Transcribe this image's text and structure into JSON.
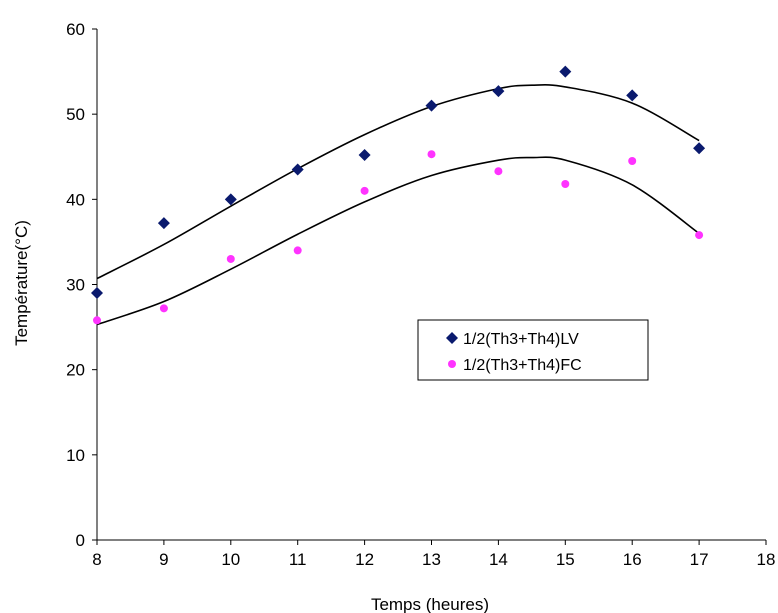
{
  "chart_data": {
    "type": "scatter",
    "title": "",
    "xlabel": "Temps (heures)",
    "ylabel": "Température(°C)",
    "xlim": [
      8,
      18
    ],
    "ylim": [
      0,
      60
    ],
    "xticks": [
      "8",
      "9",
      "10",
      "11",
      "12",
      "13",
      "14",
      "15",
      "16",
      "17",
      "18"
    ],
    "yticks": [
      "0",
      "10",
      "20",
      "30",
      "40",
      "50",
      "60"
    ],
    "grid": false,
    "legend_position": "center-right",
    "series": [
      {
        "name": "1/2(Th3+Th4)LV",
        "marker": "diamond",
        "color": "#0a1a6e",
        "x": [
          8,
          9,
          10,
          11,
          12,
          13,
          14,
          15,
          16,
          17
        ],
        "y": [
          29.0,
          37.2,
          40.0,
          43.5,
          45.2,
          51.0,
          52.7,
          55.0,
          52.2,
          46.0
        ],
        "trend_x": [
          8,
          9,
          10,
          11,
          12,
          13,
          14,
          14.5,
          15,
          16,
          17
        ],
        "trend_y": [
          30.7,
          34.7,
          39.2,
          43.6,
          47.6,
          50.9,
          53.0,
          53.4,
          53.2,
          51.3,
          46.9
        ]
      },
      {
        "name": "1/2(Th3+Th4)FC",
        "marker": "circle",
        "color": "#ff33ff",
        "x": [
          8,
          9,
          10,
          11,
          12,
          13,
          14,
          15,
          16,
          17
        ],
        "y": [
          25.8,
          27.2,
          33.0,
          34.0,
          41.0,
          45.3,
          43.3,
          41.8,
          44.5,
          35.8
        ],
        "trend_x": [
          8,
          9,
          10,
          11,
          12,
          13,
          14,
          14.5,
          15,
          16,
          17
        ],
        "trend_y": [
          25.3,
          28.0,
          31.8,
          35.9,
          39.7,
          42.8,
          44.6,
          44.9,
          44.6,
          41.7,
          36.0
        ]
      }
    ]
  }
}
